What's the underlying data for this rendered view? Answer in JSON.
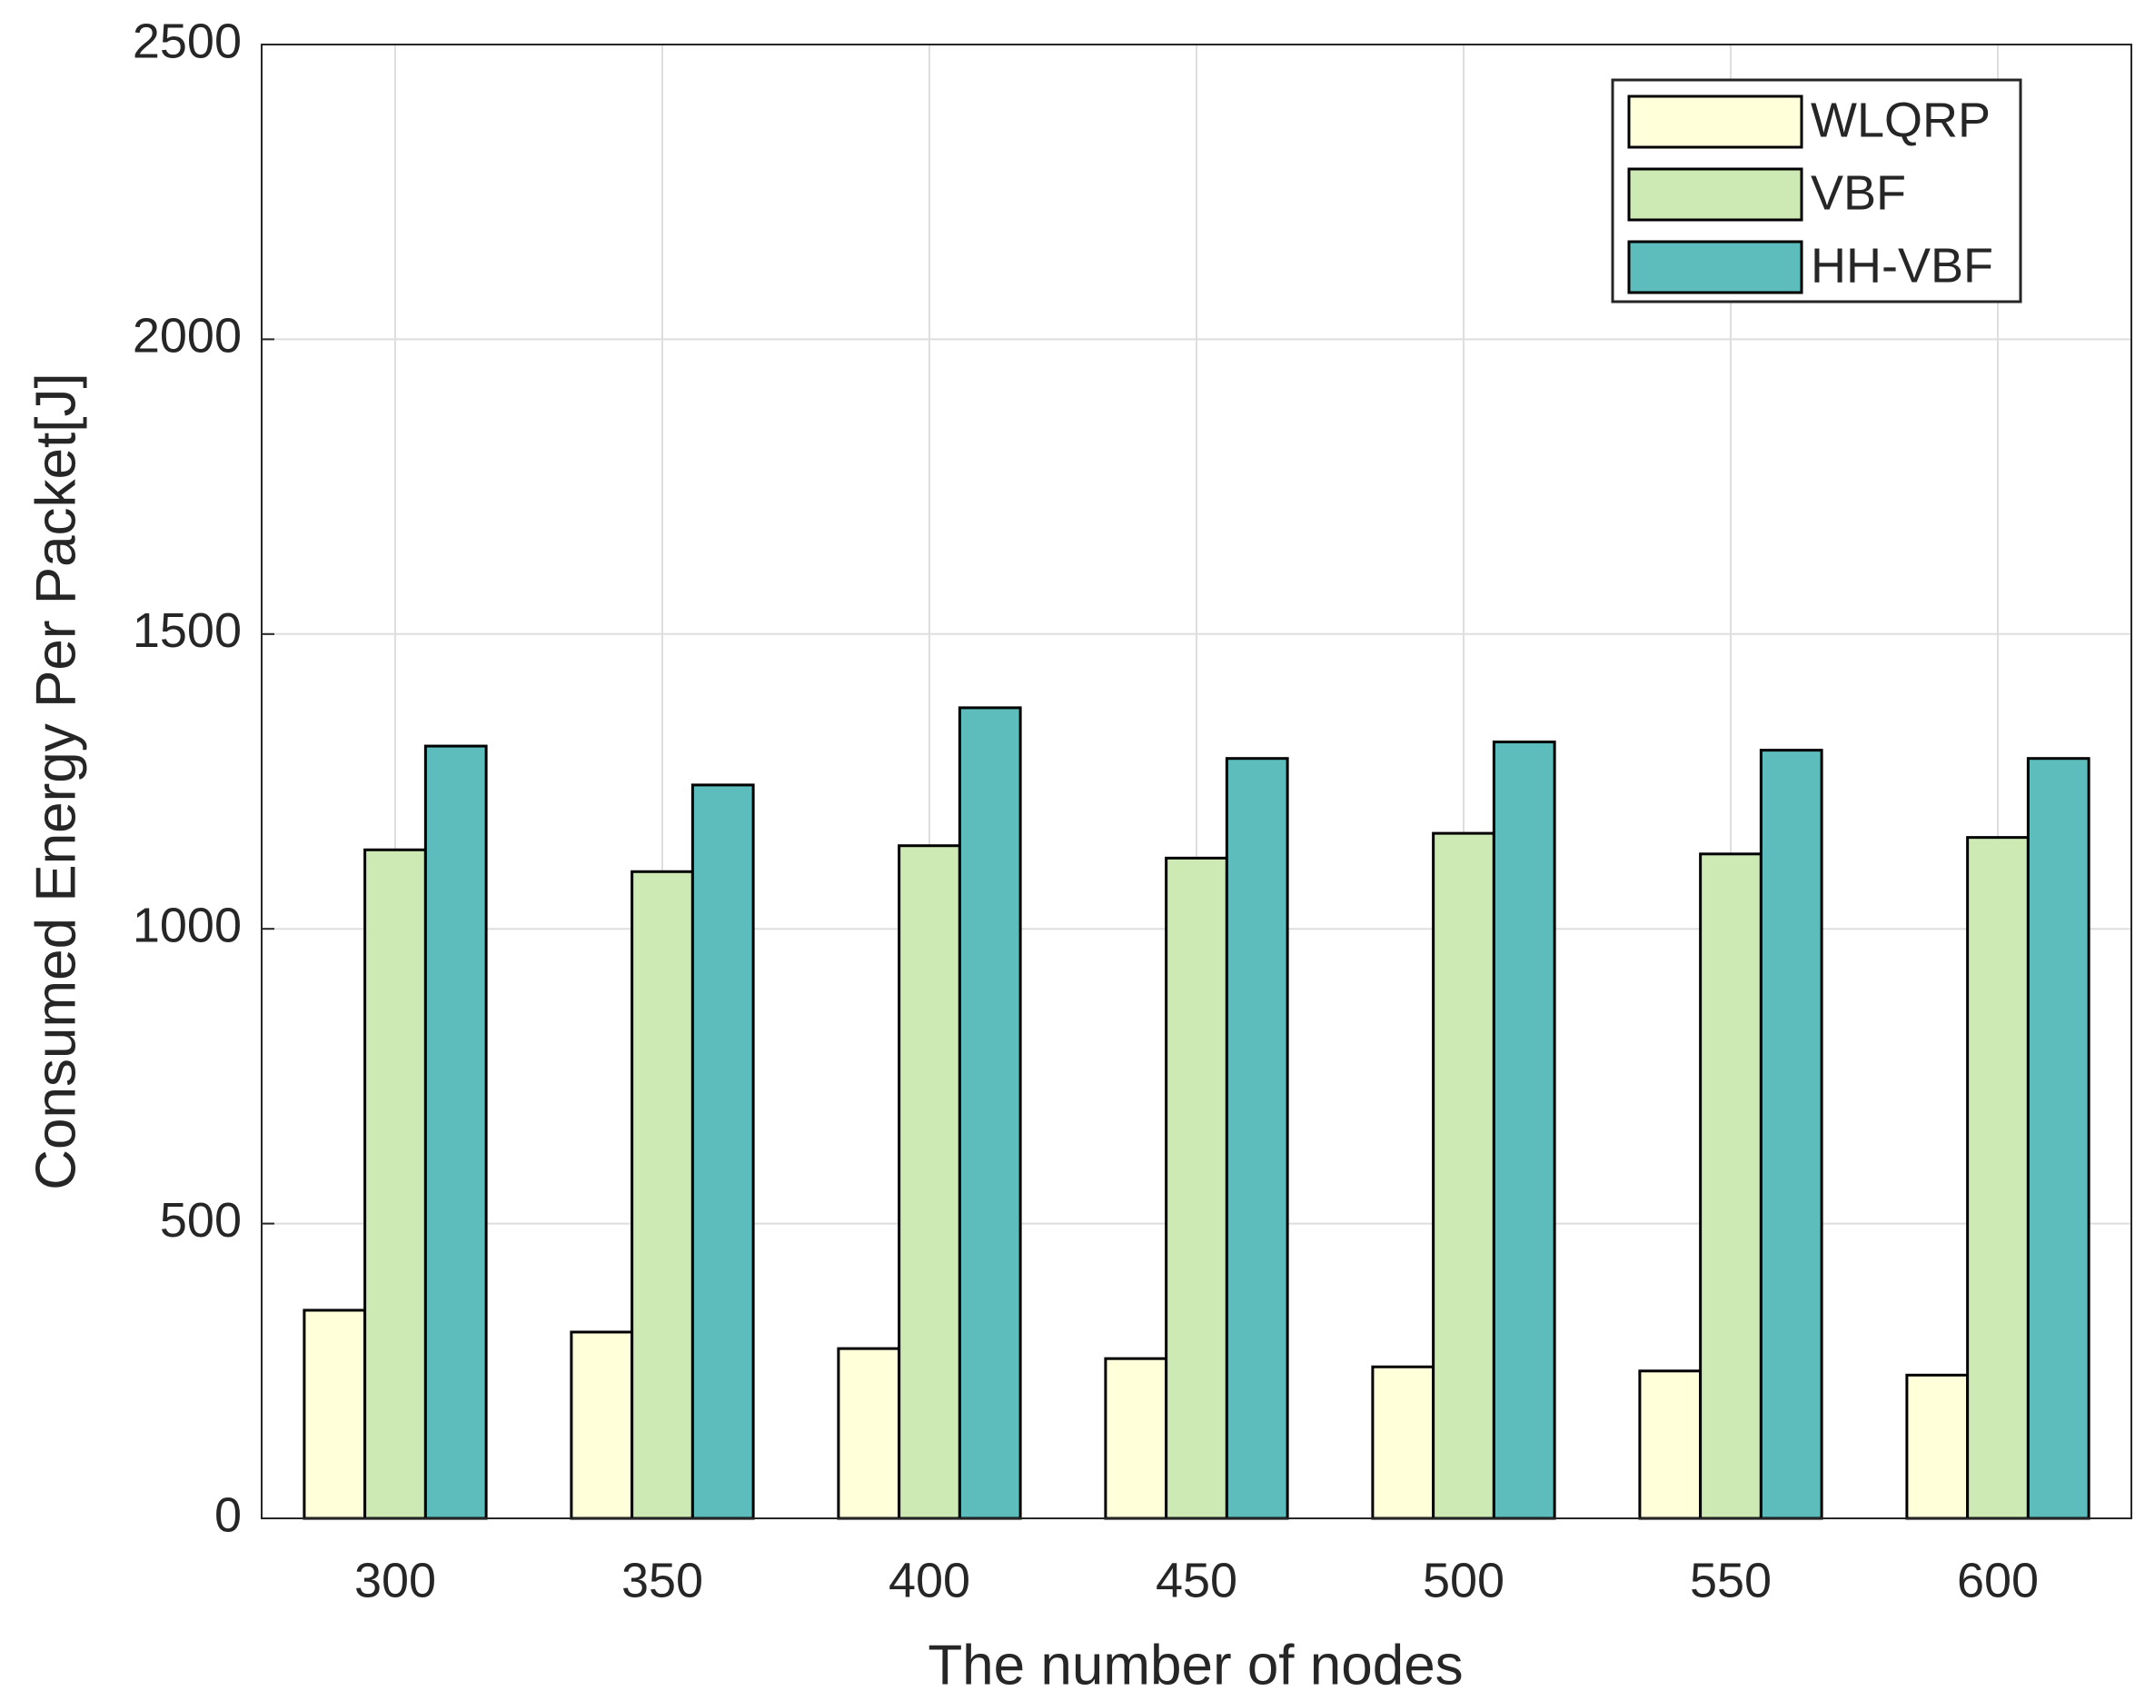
{
  "chart_data": {
    "type": "bar",
    "xlabel": "The number of nodes",
    "ylabel": "Consumed Energy Per Packet[J]",
    "categories": [
      "300",
      "350",
      "400",
      "450",
      "500",
      "550",
      "600"
    ],
    "series": [
      {
        "name": "WLQRP",
        "color": "#ffffd9",
        "values": [
          353,
          316,
          288,
          271,
          257,
          250,
          243
        ]
      },
      {
        "name": "VBF",
        "color": "#cdeab5",
        "values": [
          1134,
          1097,
          1141,
          1120,
          1162,
          1127,
          1155
        ]
      },
      {
        "name": "HH-VBF",
        "color": "#5dbdbd",
        "values": [
          1310,
          1244,
          1375,
          1289,
          1317,
          1303,
          1289
        ]
      }
    ],
    "ylim": [
      0,
      2500
    ],
    "yticks": [
      0,
      500,
      1000,
      1500,
      2000,
      2500
    ],
    "grid": true,
    "legend": "upper right"
  }
}
